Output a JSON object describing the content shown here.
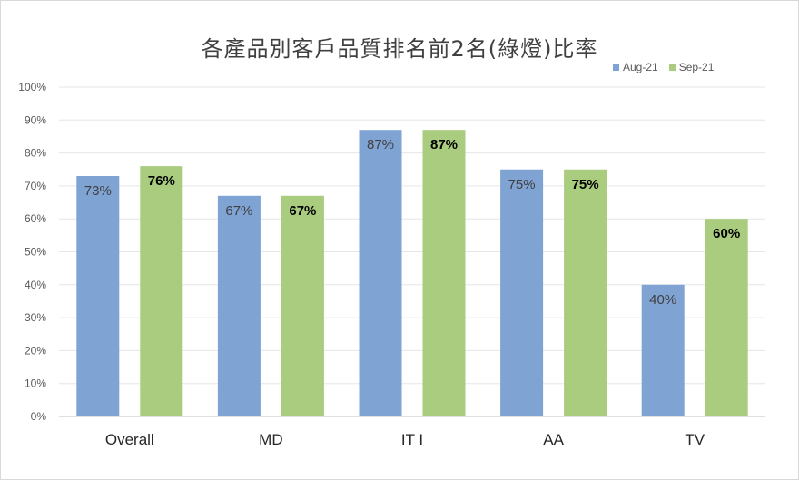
{
  "chart_data": {
    "type": "bar",
    "title": "各產品別客戶品質排名前2名(綠燈)比率",
    "xlabel": "",
    "ylabel": "",
    "ylim": [
      0,
      100
    ],
    "yticks": [
      "0%",
      "10%",
      "20%",
      "30%",
      "40%",
      "50%",
      "60%",
      "70%",
      "80%",
      "90%",
      "100%"
    ],
    "categories": [
      "Overall",
      "MD",
      "IT I",
      "AA",
      "TV"
    ],
    "series": [
      {
        "name": "Aug-21",
        "color": "#7fa3d3",
        "values": [
          73,
          67,
          87,
          75,
          40
        ],
        "labels": [
          "73%",
          "67%",
          "87%",
          "75%",
          "40%"
        ]
      },
      {
        "name": "Sep-21",
        "color": "#a9cc7e",
        "values": [
          76,
          67,
          87,
          75,
          60
        ],
        "labels": [
          "76%",
          "67%",
          "87%",
          "75%",
          "60%"
        ]
      }
    ],
    "grid": true,
    "legend_position": "top-right"
  }
}
